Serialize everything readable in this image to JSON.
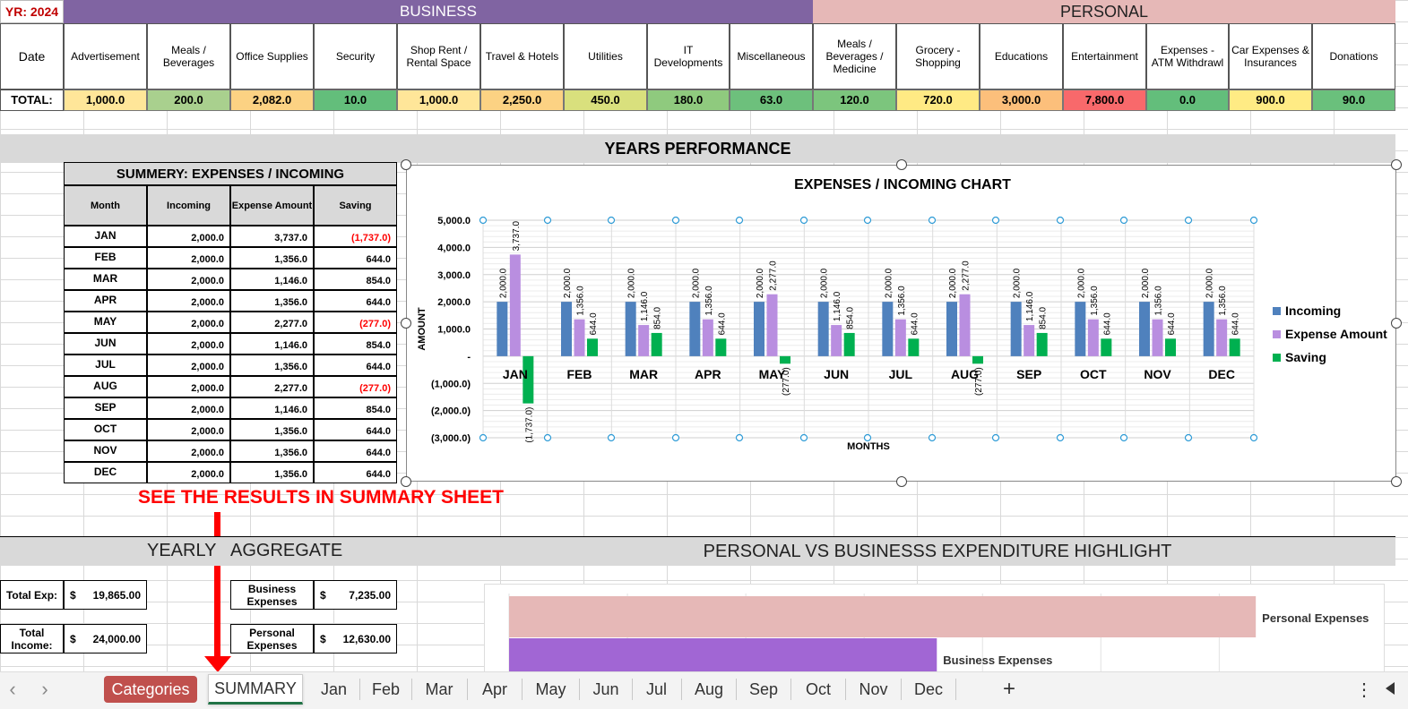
{
  "header": {
    "year_label": "YR: 2024",
    "business_label": "BUSINESS",
    "personal_label": "PERSONAL",
    "date_label": "Date",
    "total_label": "TOTAL:"
  },
  "categories": [
    {
      "name": "Advertisement",
      "total": "1,000.0",
      "color": "#ffe699"
    },
    {
      "name": "Meals / Beverages",
      "total": "200.0",
      "color": "#a9d08e"
    },
    {
      "name": "Office Supplies",
      "total": "2,082.0",
      "color": "#fcd283"
    },
    {
      "name": "Security",
      "total": "10.0",
      "color": "#63be7b"
    },
    {
      "name": "Shop Rent / Rental Space",
      "total": "1,000.0",
      "color": "#ffe699"
    },
    {
      "name": "Travel & Hotels",
      "total": "2,250.0",
      "color": "#fcd283"
    },
    {
      "name": "Utilities",
      "total": "450.0",
      "color": "#d9e07d"
    },
    {
      "name": "IT Developments",
      "total": "180.0",
      "color": "#8fca7e"
    },
    {
      "name": "Miscellaneous",
      "total": "63.0",
      "color": "#6dc07c"
    },
    {
      "name": "Meals / Beverages / Medicine",
      "total": "120.0",
      "color": "#7cc57d"
    },
    {
      "name": "Grocery - Shopping",
      "total": "720.0",
      "color": "#ffea84"
    },
    {
      "name": "Educations",
      "total": "3,000.0",
      "color": "#fcbf7b"
    },
    {
      "name": "Entertainment",
      "total": "7,800.0",
      "color": "#f8696b"
    },
    {
      "name": "Expenses - ATM Withdrawl",
      "total": "0.0",
      "color": "#63be7b"
    },
    {
      "name": "Car Expenses & Insurances",
      "total": "900.0",
      "color": "#ffeb84"
    },
    {
      "name": "Donations",
      "total": "90.0",
      "color": "#6ac07c"
    }
  ],
  "years_performance_title": "YEARS PERFORMANCE",
  "summary": {
    "title": "SUMMERY: EXPENSES / INCOMING",
    "headers": [
      "Month",
      "Incoming",
      "Expense Amount",
      "Saving"
    ],
    "rows": [
      {
        "month": "JAN",
        "incoming": "2,000.0",
        "expense": "3,737.0",
        "saving": "(1,737.0)",
        "neg": true
      },
      {
        "month": "FEB",
        "incoming": "2,000.0",
        "expense": "1,356.0",
        "saving": "644.0",
        "neg": false
      },
      {
        "month": "MAR",
        "incoming": "2,000.0",
        "expense": "1,146.0",
        "saving": "854.0",
        "neg": false
      },
      {
        "month": "APR",
        "incoming": "2,000.0",
        "expense": "1,356.0",
        "saving": "644.0",
        "neg": false
      },
      {
        "month": "MAY",
        "incoming": "2,000.0",
        "expense": "2,277.0",
        "saving": "(277.0)",
        "neg": true
      },
      {
        "month": "JUN",
        "incoming": "2,000.0",
        "expense": "1,146.0",
        "saving": "854.0",
        "neg": false
      },
      {
        "month": "JUL",
        "incoming": "2,000.0",
        "expense": "1,356.0",
        "saving": "644.0",
        "neg": false
      },
      {
        "month": "AUG",
        "incoming": "2,000.0",
        "expense": "2,277.0",
        "saving": "(277.0)",
        "neg": true
      },
      {
        "month": "SEP",
        "incoming": "2,000.0",
        "expense": "1,146.0",
        "saving": "854.0",
        "neg": false
      },
      {
        "month": "OCT",
        "incoming": "2,000.0",
        "expense": "1,356.0",
        "saving": "644.0",
        "neg": false
      },
      {
        "month": "NOV",
        "incoming": "2,000.0",
        "expense": "1,356.0",
        "saving": "644.0",
        "neg": false
      },
      {
        "month": "DEC",
        "incoming": "2,000.0",
        "expense": "1,356.0",
        "saving": "644.0",
        "neg": false
      }
    ]
  },
  "annotation": "SEE THE RESULTS IN SUMMARY SHEET",
  "yearly": {
    "title_left": "YEARLY",
    "title_right": "AGGREGATE",
    "total_exp_label": "Total Exp:",
    "total_exp_currency": "$",
    "total_exp_value": "19,865.00",
    "total_income_label": "Total Income:",
    "total_income_currency": "$",
    "total_income_value": "24,000.00",
    "business_label": "Business Expenses",
    "business_currency": "$",
    "business_value": "7,235.00",
    "personal_label": "Personal Expenses",
    "personal_currency": "$",
    "personal_value": "12,630.00"
  },
  "highlight_title": "PERSONAL VS BUSINESSS EXPENDITURE HIGHLIGHT",
  "chart_data": [
    {
      "type": "bar",
      "title": "EXPENSES / INCOMING CHART",
      "xlabel": "MONTHS",
      "ylabel": "AMOUNT",
      "ylim": [
        -3000,
        5000
      ],
      "yticks": [
        "5,000.0",
        "4,000.0",
        "3,000.0",
        "2,000.0",
        "1,000.0",
        "-",
        "(1,000.0)",
        "(2,000.0)",
        "(3,000.0)"
      ],
      "categories": [
        "JAN",
        "FEB",
        "MAR",
        "APR",
        "MAY",
        "JUN",
        "JUL",
        "AUG",
        "SEP",
        "OCT",
        "NOV",
        "DEC"
      ],
      "series": [
        {
          "name": "Incoming",
          "color": "#4f81bd",
          "values": [
            2000,
            2000,
            2000,
            2000,
            2000,
            2000,
            2000,
            2000,
            2000,
            2000,
            2000,
            2000
          ],
          "labels": [
            "2,000.0",
            "2,000.0",
            "2,000.0",
            "2,000.0",
            "2,000.0",
            "2,000.0",
            "2,000.0",
            "2,000.0",
            "2,000.0",
            "2,000.0",
            "2,000.0",
            "2,000.0"
          ]
        },
        {
          "name": "Expense Amount",
          "color": "#b98ee0",
          "values": [
            3737,
            1356,
            1146,
            1356,
            2277,
            1146,
            1356,
            2277,
            1146,
            1356,
            1356,
            1356
          ],
          "labels": [
            "3,737.0",
            "1,356.0",
            "1,146.0",
            "1,356.0",
            "2,277.0",
            "1,146.0",
            "1,356.0",
            "2,277.0",
            "1,146.0",
            "1,356.0",
            "1,356.0",
            "1,356.0"
          ]
        },
        {
          "name": "Saving",
          "color": "#00b050",
          "values": [
            -1737,
            644,
            854,
            644,
            -277,
            854,
            644,
            -277,
            854,
            644,
            644,
            644
          ],
          "labels": [
            "(1,737.0)",
            "644.0",
            "854.0",
            "644.0",
            "(277.0)",
            "854.0",
            "644.0",
            "(277.0)",
            "854.0",
            "644.0",
            "644.0",
            "644.0"
          ]
        }
      ],
      "legend": "right",
      "grid": true
    },
    {
      "type": "bar",
      "orientation": "horizontal",
      "categories": [
        "Personal Expenses",
        "Business Expenses"
      ],
      "values": [
        12630,
        7235
      ],
      "colors": [
        "#e6b8b7",
        "#a166d4"
      ],
      "grid": true
    }
  ],
  "sheet_tabs": {
    "active": "SUMMARY",
    "categories_tab": "Categories",
    "months": [
      "Jan",
      "Feb",
      "Mar",
      "Apr",
      "May",
      "Jun",
      "Jul",
      "Aug",
      "Sep",
      "Oct",
      "Nov",
      "Dec"
    ],
    "add_label": "+",
    "more_label": "⋮",
    "prev_label": "‹",
    "next_label": "›"
  }
}
